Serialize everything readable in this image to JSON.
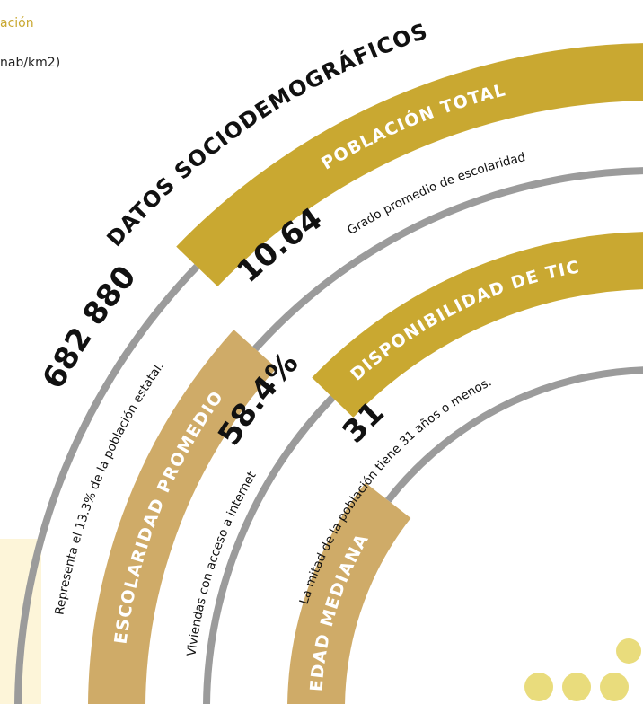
{
  "header": {
    "fragment_title": "ación",
    "fragment_unit": "nab/km2)"
  },
  "infographic": {
    "title": "DATOS SOCIODEMOGRÁFICOS",
    "sections": [
      {
        "label": "POBLACIÓN TOTAL",
        "value": "682 880",
        "description": "Representa el 13.3% de la población estatal."
      },
      {
        "label": "ESCOLARIDAD PROMEDIO",
        "value": "10.64",
        "description": "Grado promedio de escolaridad"
      },
      {
        "label": "DISPONIBILIDAD DE TIC",
        "value": "58.4%",
        "description": "Viviendas con acceso a internet"
      },
      {
        "label": "EDAD MEDIANA",
        "value": "31",
        "description": "La mitad de la población tiene 31 años o menos."
      }
    ]
  }
}
